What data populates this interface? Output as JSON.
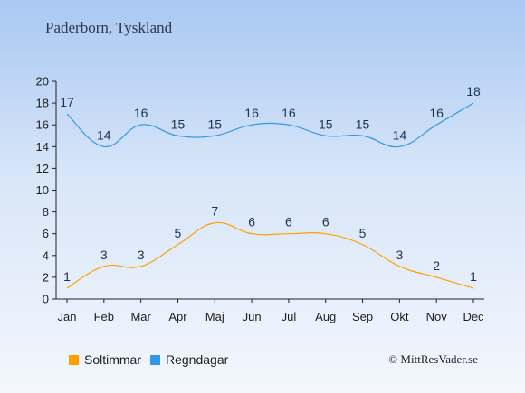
{
  "title": "Paderborn, Tyskland",
  "credit": "© MittResVader.se",
  "chart_data": {
    "type": "line",
    "categories": [
      "Jan",
      "Feb",
      "Mar",
      "Apr",
      "Maj",
      "Jun",
      "Jul",
      "Aug",
      "Sep",
      "Okt",
      "Nov",
      "Dec"
    ],
    "ylim": [
      0,
      20
    ],
    "yticks": [
      0,
      2,
      4,
      6,
      8,
      10,
      12,
      14,
      16,
      18,
      20
    ],
    "grid": false,
    "legend_position": "bottom-left",
    "series": [
      {
        "name": "Soltimmar",
        "color": "#ffa000",
        "values": [
          1,
          3,
          3,
          5,
          7,
          6,
          6,
          6,
          5,
          3,
          2,
          1
        ]
      },
      {
        "name": "Regndagar",
        "color": "#3399e6",
        "values": [
          17,
          14,
          16,
          15,
          15,
          16,
          16,
          15,
          15,
          14,
          16,
          18
        ]
      }
    ]
  }
}
